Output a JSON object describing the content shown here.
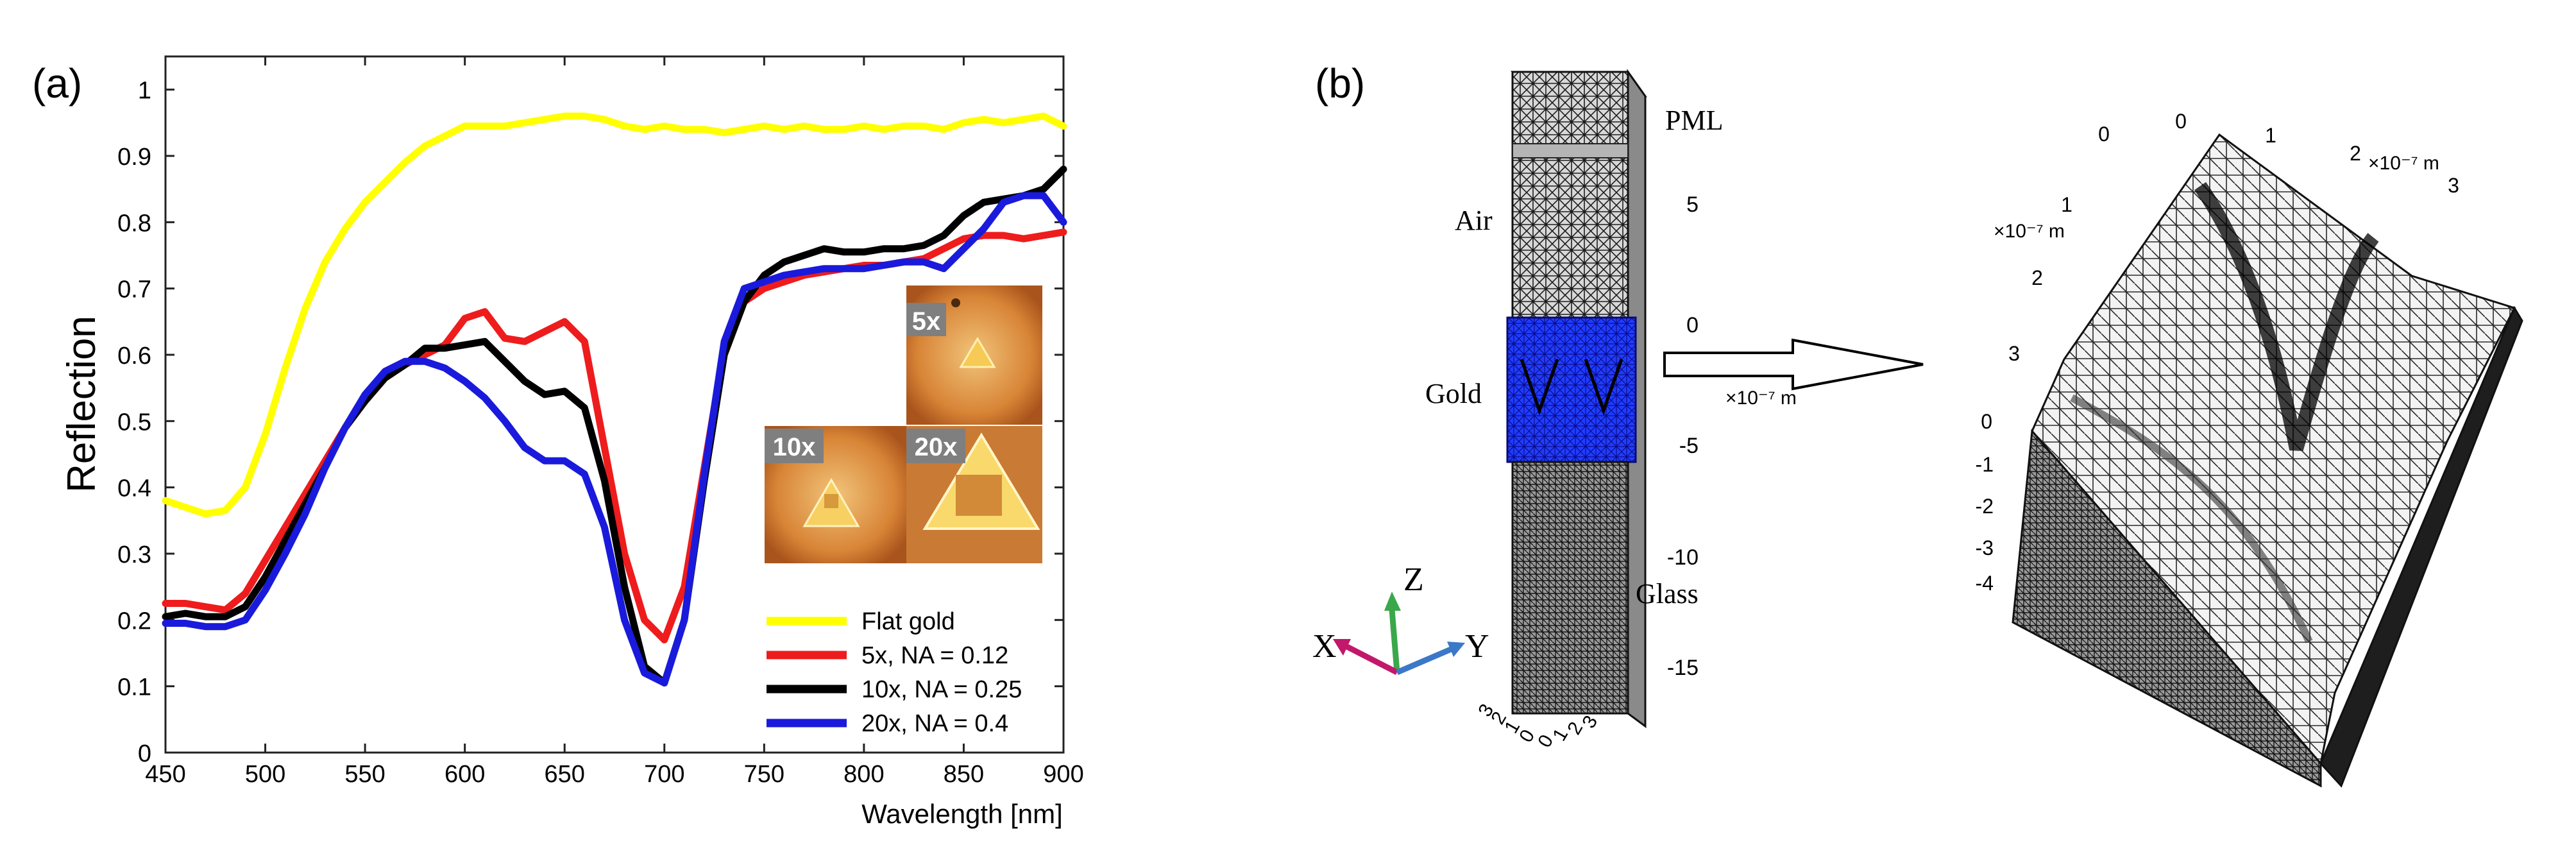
{
  "panel_a": {
    "label": "(a)",
    "inset_labels": [
      "5x",
      "10x",
      "20x"
    ]
  },
  "panel_b": {
    "label": "(b)",
    "column": {
      "labels": [
        "PML",
        "Air",
        "Gold",
        "Glass"
      ],
      "z_ticks": [
        "5",
        "0",
        "-5",
        "-10",
        "-15"
      ],
      "z_unit": "×10⁻⁷ m",
      "base_ticks_left": [
        "3",
        "2",
        "1",
        "0"
      ],
      "base_ticks_right": [
        "0",
        "1",
        "2",
        "3"
      ]
    },
    "axes_triad": {
      "x": "X",
      "y": "Y",
      "z": "Z"
    },
    "surface": {
      "top_ticks_a": [
        "0",
        "1",
        "2",
        "3"
      ],
      "top_ticks_b": [
        "3",
        "2",
        "1",
        "0"
      ],
      "unit_a": "×10⁻⁷ m",
      "unit_b": "×10⁻⁷ m",
      "z_ticks": [
        "0",
        "-1",
        "-2",
        "-3",
        "-4"
      ]
    }
  },
  "chart_data": {
    "type": "line",
    "title": "",
    "xlabel": "Wavelength [nm]",
    "ylabel": "Reflection",
    "xlim": [
      450,
      900
    ],
    "ylim": [
      0,
      1.05
    ],
    "xticks": [
      450,
      500,
      550,
      600,
      650,
      700,
      750,
      800,
      850,
      900
    ],
    "yticks": [
      0,
      0.1,
      0.2,
      0.3,
      0.4,
      0.5,
      0.6,
      0.7,
      0.8,
      0.9,
      1
    ],
    "ytick_labels": [
      "0",
      "0.1",
      "0.2",
      "0.3",
      "0.4",
      "0.5",
      "0.6",
      "0.7",
      "0.8",
      "0.9",
      "1"
    ],
    "legend_position": "bottom-right",
    "series": [
      {
        "name": "Flat gold",
        "color": "#ffff00",
        "x": [
          450,
          460,
          470,
          480,
          490,
          500,
          510,
          520,
          530,
          540,
          550,
          560,
          570,
          580,
          590,
          600,
          610,
          620,
          630,
          640,
          650,
          660,
          670,
          680,
          690,
          700,
          710,
          720,
          730,
          740,
          750,
          760,
          770,
          780,
          790,
          800,
          810,
          820,
          830,
          840,
          850,
          860,
          870,
          880,
          890,
          900
        ],
        "y": [
          0.38,
          0.37,
          0.36,
          0.365,
          0.4,
          0.48,
          0.58,
          0.67,
          0.74,
          0.79,
          0.83,
          0.86,
          0.89,
          0.915,
          0.93,
          0.945,
          0.945,
          0.945,
          0.95,
          0.955,
          0.96,
          0.96,
          0.955,
          0.945,
          0.94,
          0.945,
          0.94,
          0.94,
          0.935,
          0.94,
          0.945,
          0.94,
          0.945,
          0.94,
          0.94,
          0.945,
          0.94,
          0.945,
          0.945,
          0.94,
          0.95,
          0.955,
          0.95,
          0.955,
          0.96,
          0.945
        ]
      },
      {
        "name": "5x, NA = 0.12",
        "color": "#ee1c1c",
        "x": [
          450,
          460,
          470,
          480,
          490,
          500,
          510,
          520,
          530,
          540,
          550,
          560,
          570,
          580,
          590,
          600,
          610,
          620,
          630,
          640,
          650,
          660,
          670,
          680,
          690,
          700,
          710,
          720,
          730,
          740,
          750,
          760,
          770,
          780,
          790,
          800,
          810,
          820,
          830,
          840,
          850,
          860,
          870,
          880,
          890,
          900
        ],
        "y": [
          0.225,
          0.225,
          0.22,
          0.215,
          0.24,
          0.29,
          0.34,
          0.39,
          0.44,
          0.49,
          0.53,
          0.565,
          0.585,
          0.6,
          0.615,
          0.655,
          0.665,
          0.625,
          0.62,
          0.635,
          0.65,
          0.62,
          0.46,
          0.3,
          0.2,
          0.17,
          0.25,
          0.43,
          0.61,
          0.68,
          0.7,
          0.71,
          0.72,
          0.725,
          0.73,
          0.735,
          0.735,
          0.74,
          0.745,
          0.76,
          0.775,
          0.78,
          0.78,
          0.775,
          0.78,
          0.785
        ]
      },
      {
        "name": "10x, NA = 0.25",
        "color": "#000000",
        "x": [
          450,
          460,
          470,
          480,
          490,
          500,
          510,
          520,
          530,
          540,
          550,
          560,
          570,
          580,
          590,
          600,
          610,
          620,
          630,
          640,
          650,
          660,
          670,
          680,
          690,
          700,
          710,
          720,
          730,
          740,
          750,
          760,
          770,
          780,
          790,
          800,
          810,
          820,
          830,
          840,
          850,
          860,
          870,
          880,
          890,
          900
        ],
        "y": [
          0.205,
          0.21,
          0.205,
          0.205,
          0.22,
          0.265,
          0.32,
          0.375,
          0.43,
          0.49,
          0.53,
          0.565,
          0.585,
          0.61,
          0.61,
          0.615,
          0.62,
          0.59,
          0.56,
          0.54,
          0.545,
          0.52,
          0.41,
          0.25,
          0.13,
          0.105,
          0.2,
          0.41,
          0.6,
          0.68,
          0.72,
          0.74,
          0.75,
          0.76,
          0.755,
          0.755,
          0.76,
          0.76,
          0.765,
          0.78,
          0.81,
          0.83,
          0.835,
          0.84,
          0.85,
          0.88
        ]
      },
      {
        "name": "20x, NA = 0.4",
        "color": "#1a1adc",
        "x": [
          450,
          460,
          470,
          480,
          490,
          500,
          510,
          520,
          530,
          540,
          550,
          560,
          570,
          580,
          590,
          600,
          610,
          620,
          630,
          640,
          650,
          660,
          670,
          680,
          690,
          700,
          710,
          720,
          730,
          740,
          750,
          760,
          770,
          780,
          790,
          800,
          810,
          820,
          830,
          840,
          850,
          860,
          870,
          880,
          890,
          900
        ],
        "y": [
          0.195,
          0.195,
          0.19,
          0.19,
          0.2,
          0.245,
          0.3,
          0.36,
          0.43,
          0.49,
          0.54,
          0.575,
          0.59,
          0.59,
          0.58,
          0.56,
          0.535,
          0.5,
          0.46,
          0.44,
          0.44,
          0.42,
          0.34,
          0.2,
          0.12,
          0.105,
          0.2,
          0.42,
          0.62,
          0.7,
          0.71,
          0.72,
          0.725,
          0.73,
          0.73,
          0.73,
          0.735,
          0.74,
          0.74,
          0.73,
          0.76,
          0.79,
          0.83,
          0.84,
          0.84,
          0.8
        ]
      }
    ]
  }
}
